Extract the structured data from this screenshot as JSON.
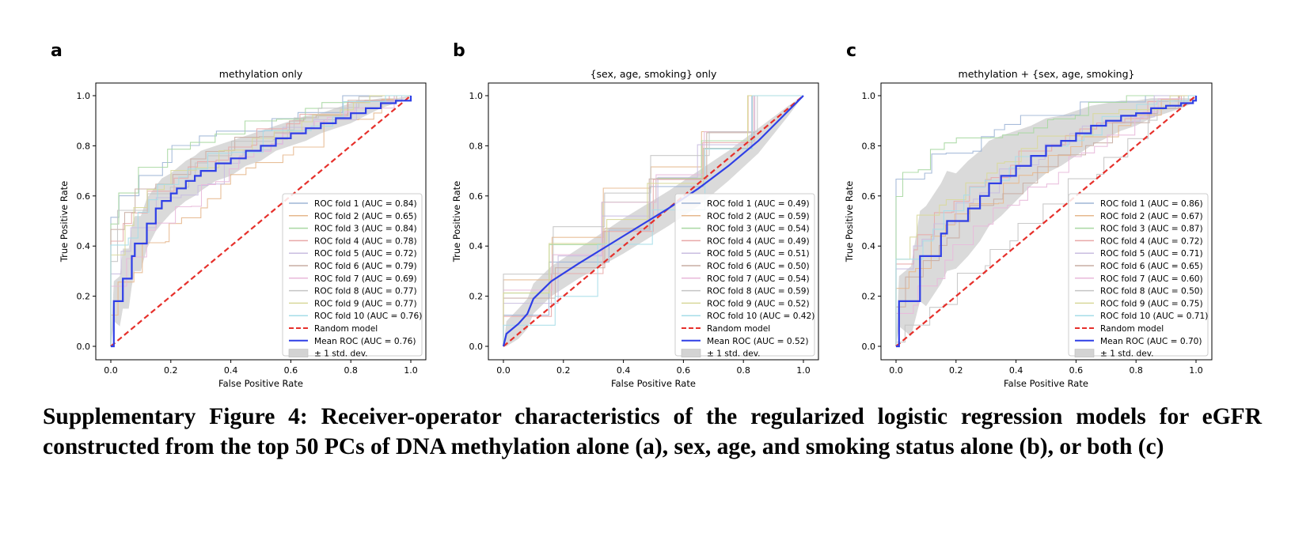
{
  "caption": "Supplementary Figure 4: Receiver-operator characteristics of the regularized logistic regression models for eGFR constructed from the top 50 PCs of DNA methylation alone (a), sex, age, and smoking status alone (b), or both (c)",
  "colors": {
    "folds": [
      "#9fb5d6",
      "#e6b88e",
      "#a9d8a2",
      "#e8a8a8",
      "#c9bde0",
      "#c9aea4",
      "#e8b9da",
      "#c4c4c4",
      "#d8d89a",
      "#a6dde8"
    ],
    "random": "#e6302b",
    "mean": "#2f3fe6",
    "band": "#d3d3d3"
  },
  "chart_data": [
    {
      "panel_label": "a",
      "type": "line",
      "title": "methylation only",
      "xlabel": "False Positive Rate",
      "ylabel": "True Positive Rate",
      "xlim": [
        0,
        1
      ],
      "ylim": [
        0,
        1
      ],
      "xticks": [
        "0.0",
        "0.2",
        "0.4",
        "0.6",
        "0.8",
        "1.0"
      ],
      "yticks": [
        "0.0",
        "0.2",
        "0.4",
        "0.6",
        "0.8",
        "1.0"
      ],
      "grid": false,
      "legend_position": "lower-right",
      "fold_aucs": [
        0.84,
        0.65,
        0.84,
        0.78,
        0.72,
        0.79,
        0.69,
        0.77,
        0.77,
        0.76
      ],
      "legend": [
        "ROC fold 1 (AUC = 0.84)",
        "ROC fold 2 (AUC = 0.65)",
        "ROC fold 3 (AUC = 0.84)",
        "ROC fold 4 (AUC = 0.78)",
        "ROC fold 5 (AUC = 0.72)",
        "ROC fold 6 (AUC = 0.79)",
        "ROC fold 7 (AUC = 0.69)",
        "ROC fold 8 (AUC = 0.77)",
        "ROC fold 9 (AUC = 0.77)",
        "ROC fold 10 (AUC = 0.76)",
        "Random model",
        "Mean ROC (AUC = 0.76)",
        "± 1 std. dev."
      ],
      "random": {
        "x": [
          0,
          1
        ],
        "y": [
          0,
          1
        ]
      },
      "mean": {
        "x": [
          0,
          0.01,
          0.03,
          0.04,
          0.06,
          0.07,
          0.08,
          0.1,
          0.12,
          0.15,
          0.17,
          0.2,
          0.22,
          0.25,
          0.28,
          0.3,
          0.35,
          0.4,
          0.45,
          0.5,
          0.55,
          0.6,
          0.65,
          0.7,
          0.75,
          0.8,
          0.85,
          0.9,
          0.95,
          1.0
        ],
        "y": [
          0,
          0.18,
          0.18,
          0.27,
          0.27,
          0.36,
          0.41,
          0.41,
          0.49,
          0.55,
          0.58,
          0.61,
          0.63,
          0.66,
          0.68,
          0.7,
          0.73,
          0.75,
          0.78,
          0.8,
          0.83,
          0.85,
          0.87,
          0.89,
          0.91,
          0.93,
          0.95,
          0.97,
          0.98,
          1.0
        ]
      },
      "band_halfwidth": [
        0,
        0.08,
        0.1,
        0.12,
        0.12,
        0.12,
        0.11,
        0.11,
        0.1,
        0.09,
        0.09,
        0.08,
        0.08,
        0.08,
        0.08,
        0.08,
        0.07,
        0.07,
        0.06,
        0.06,
        0.05,
        0.05,
        0.05,
        0.04,
        0.04,
        0.04,
        0.03,
        0.02,
        0.01,
        0
      ]
    },
    {
      "panel_label": "b",
      "type": "line",
      "title": "{sex, age, smoking} only",
      "xlabel": "False Positive Rate",
      "ylabel": "True Positive Rate",
      "xlim": [
        0,
        1
      ],
      "ylim": [
        0,
        1
      ],
      "xticks": [
        "0.0",
        "0.2",
        "0.4",
        "0.6",
        "0.8",
        "1.0"
      ],
      "yticks": [
        "0.0",
        "0.2",
        "0.4",
        "0.6",
        "0.8",
        "1.0"
      ],
      "grid": false,
      "legend_position": "lower-right",
      "fold_aucs": [
        0.49,
        0.59,
        0.54,
        0.49,
        0.51,
        0.5,
        0.54,
        0.59,
        0.52,
        0.42
      ],
      "legend": [
        "ROC fold 1 (AUC = 0.49)",
        "ROC fold 2 (AUC = 0.59)",
        "ROC fold 3 (AUC = 0.54)",
        "ROC fold 4 (AUC = 0.49)",
        "ROC fold 5 (AUC = 0.51)",
        "ROC fold 6 (AUC = 0.50)",
        "ROC fold 7 (AUC = 0.54)",
        "ROC fold 8 (AUC = 0.59)",
        "ROC fold 9 (AUC = 0.52)",
        "ROC fold 10 (AUC = 0.42)",
        "Random model",
        "Mean ROC (AUC = 0.52)",
        "± 1 std. dev."
      ],
      "random": {
        "x": [
          0,
          1
        ],
        "y": [
          0,
          1
        ]
      },
      "mean": {
        "x": [
          0,
          0.01,
          0.05,
          0.08,
          0.1,
          0.16,
          0.25,
          0.4,
          0.55,
          0.65,
          0.75,
          0.85,
          0.95,
          1.0
        ],
        "y": [
          0,
          0.05,
          0.09,
          0.13,
          0.19,
          0.26,
          0.33,
          0.44,
          0.55,
          0.63,
          0.72,
          0.82,
          0.94,
          1.0
        ]
      },
      "band_halfwidth": [
        0,
        0.05,
        0.06,
        0.06,
        0.06,
        0.06,
        0.06,
        0.07,
        0.07,
        0.07,
        0.06,
        0.05,
        0.02,
        0
      ]
    },
    {
      "panel_label": "c",
      "type": "line",
      "title": "methylation + {sex, age, smoking}",
      "xlabel": "False Positive Rate",
      "ylabel": "True Positive Rate",
      "xlim": [
        0,
        1
      ],
      "ylim": [
        0,
        1
      ],
      "xticks": [
        "0.0",
        "0.2",
        "0.4",
        "0.6",
        "0.8",
        "1.0"
      ],
      "yticks": [
        "0.0",
        "0.2",
        "0.4",
        "0.6",
        "0.8",
        "1.0"
      ],
      "grid": false,
      "legend_position": "lower-right",
      "fold_aucs": [
        0.86,
        0.67,
        0.87,
        0.72,
        0.71,
        0.65,
        0.6,
        0.5,
        0.75,
        0.71
      ],
      "legend": [
        "ROC fold 1 (AUC = 0.86)",
        "ROC fold 2 (AUC = 0.67)",
        "ROC fold 3 (AUC = 0.87)",
        "ROC fold 4 (AUC = 0.72)",
        "ROC fold 5 (AUC = 0.71)",
        "ROC fold 6 (AUC = 0.65)",
        "ROC fold 7 (AUC = 0.60)",
        "ROC fold 8 (AUC = 0.50)",
        "ROC fold 9 (AUC = 0.75)",
        "ROC fold 10 (AUC = 0.71)",
        "Random model",
        "Mean ROC (AUC = 0.70)",
        "± 1 std. dev."
      ],
      "random": {
        "x": [
          0,
          1
        ],
        "y": [
          0,
          1
        ]
      },
      "mean": {
        "x": [
          0,
          0.01,
          0.05,
          0.08,
          0.1,
          0.15,
          0.17,
          0.2,
          0.24,
          0.28,
          0.31,
          0.35,
          0.4,
          0.45,
          0.5,
          0.55,
          0.6,
          0.65,
          0.7,
          0.75,
          0.8,
          0.85,
          0.9,
          0.95,
          0.99,
          1.0
        ],
        "y": [
          0,
          0.18,
          0.18,
          0.36,
          0.36,
          0.45,
          0.5,
          0.5,
          0.55,
          0.6,
          0.65,
          0.68,
          0.72,
          0.76,
          0.8,
          0.82,
          0.85,
          0.88,
          0.9,
          0.92,
          0.93,
          0.95,
          0.96,
          0.97,
          0.98,
          1.0
        ]
      },
      "band_halfwidth": [
        0,
        0.1,
        0.14,
        0.18,
        0.2,
        0.2,
        0.2,
        0.19,
        0.19,
        0.18,
        0.17,
        0.16,
        0.14,
        0.12,
        0.11,
        0.1,
        0.09,
        0.08,
        0.07,
        0.06,
        0.05,
        0.04,
        0.03,
        0.02,
        0.01,
        0
      ]
    }
  ]
}
